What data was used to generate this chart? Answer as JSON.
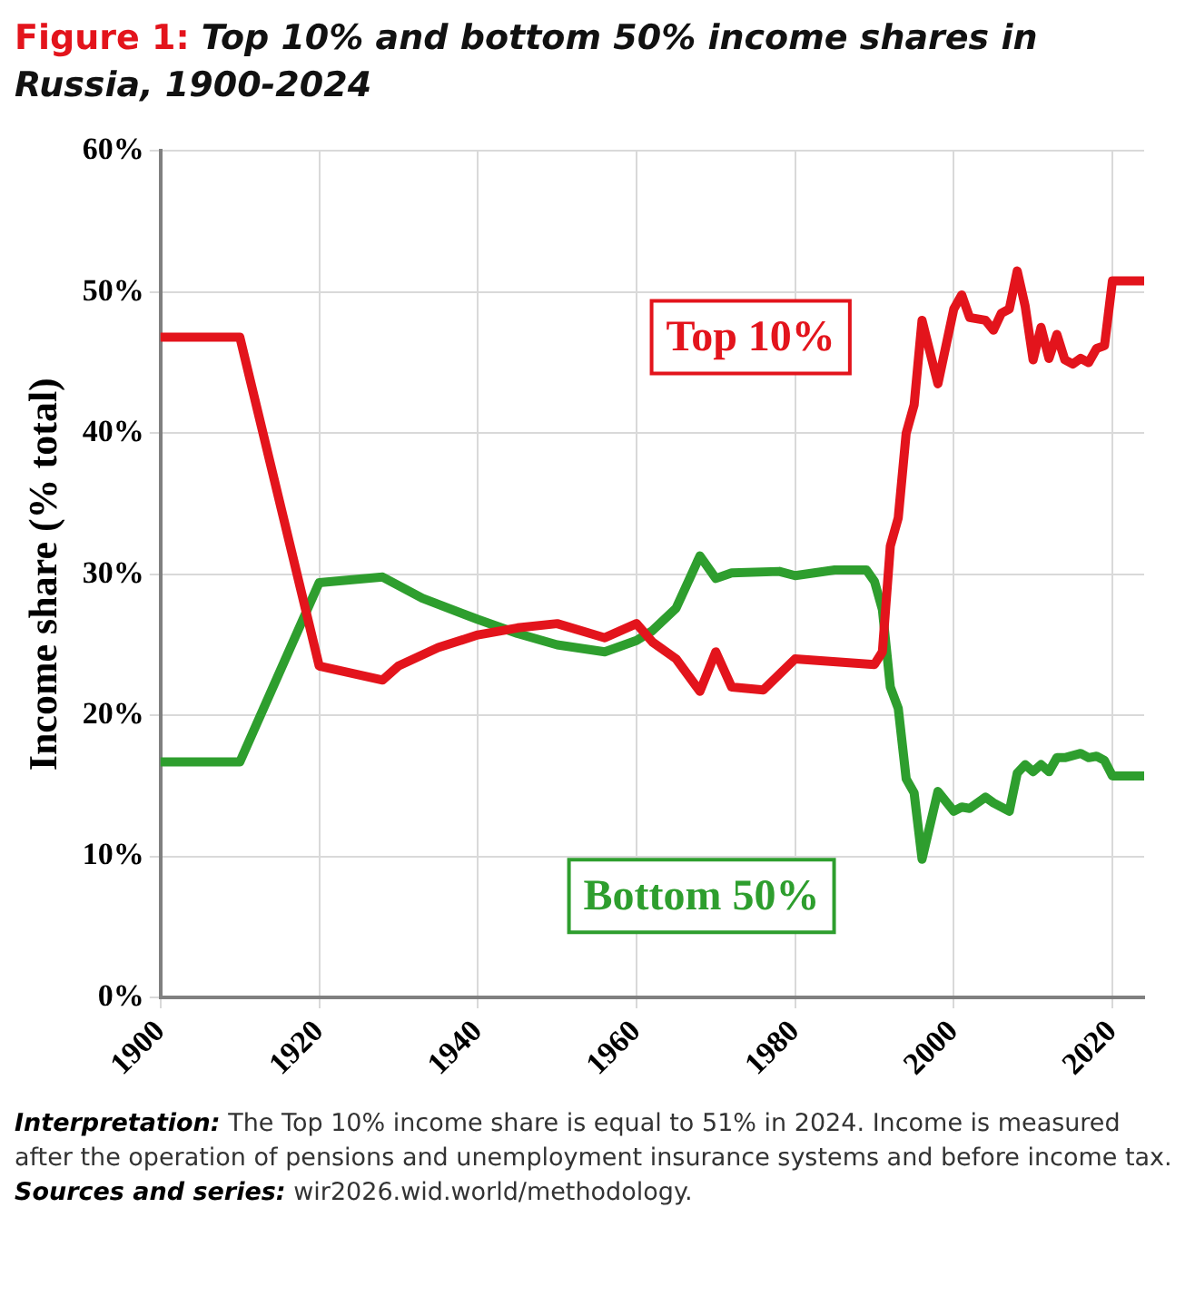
{
  "chart_data": {
    "type": "line",
    "title": "Figure 1: Top 10% and bottom 50% income shares in Russia, 1900-2024",
    "ylabel": "Income share (% total)",
    "annotations": [
      "Interpretation: The Top 10% income share is equal to 51% in 2024. Income is measured after the operation of pensions and unemployment insurance systems and before income tax.",
      "Sources and series: wir2026.wid.world/methodology."
    ],
    "xlim": [
      1900,
      2024
    ],
    "xticks": [
      1900,
      1920,
      1940,
      1960,
      1980,
      2000,
      2020
    ],
    "ylim": [
      0,
      60
    ],
    "yticks": [
      {
        "value": 0,
        "label": "0%"
      },
      {
        "value": 10,
        "label": "10%"
      },
      {
        "value": 20,
        "label": "20%"
      },
      {
        "value": 30,
        "label": "30%"
      },
      {
        "value": 40,
        "label": "40%"
      },
      {
        "value": 50,
        "label": "50%"
      },
      {
        "value": 60,
        "label": "60%"
      }
    ],
    "grid": true,
    "legend": false,
    "marker": "none",
    "line_style": "solid",
    "series": [
      {
        "name": "Top 10%",
        "color": "#e3141c",
        "x": [
          1900,
          1910,
          1920,
          1928,
          1930,
          1935,
          1940,
          1945,
          1950,
          1956,
          1960,
          1962,
          1965,
          1968,
          1970,
          1972,
          1976,
          1980,
          1990,
          1991,
          1992,
          1993,
          1994,
          1995,
          1996,
          1998,
          2000,
          2001,
          2002,
          2004,
          2005,
          2006,
          2007,
          2008,
          2009,
          2010,
          2011,
          2012,
          2013,
          2014,
          2015,
          2016,
          2017,
          2018,
          2019,
          2020,
          2024
        ],
        "values": [
          46.8,
          46.8,
          23.5,
          22.5,
          23.5,
          24.8,
          25.7,
          26.2,
          26.5,
          25.5,
          26.5,
          25.2,
          24,
          21.7,
          24.5,
          22,
          21.8,
          24,
          23.6,
          24.5,
          32,
          34,
          40,
          42,
          48,
          43.5,
          48.8,
          49.8,
          48.2,
          48,
          47.3,
          48.5,
          48.8,
          51.5,
          49,
          45.2,
          47.5,
          45.3,
          47,
          45.2,
          44.9,
          45.3,
          45,
          46,
          46.2,
          50.8,
          50.8
        ]
      },
      {
        "name": "Bottom 50%",
        "color": "#2e9e2e",
        "x": [
          1900,
          1910,
          1920,
          1928,
          1933,
          1940,
          1945,
          1950,
          1956,
          1960,
          1962,
          1965,
          1968,
          1970,
          1972,
          1978,
          1980,
          1985,
          1989,
          1990,
          1991,
          1992,
          1993,
          1994,
          1995,
          1996,
          1998,
          2000,
          2001,
          2002,
          2004,
          2005,
          2007,
          2008,
          2009,
          2010,
          2011,
          2012,
          2013,
          2014,
          2016,
          2017,
          2018,
          2019,
          2020,
          2024
        ],
        "values": [
          16.7,
          16.7,
          29.4,
          29.8,
          28.3,
          26.8,
          25.8,
          25,
          24.5,
          25.3,
          26,
          27.6,
          31.3,
          29.7,
          30.1,
          30.2,
          29.9,
          30.3,
          30.3,
          29.5,
          27.5,
          22,
          20.5,
          15.5,
          14.5,
          9.8,
          14.6,
          13.2,
          13.5,
          13.4,
          14.2,
          13.8,
          13.2,
          15.9,
          16.5,
          16,
          16.5,
          16,
          17,
          17,
          17.3,
          17,
          17.1,
          16.8,
          15.7,
          15.7
        ]
      }
    ]
  }
}
